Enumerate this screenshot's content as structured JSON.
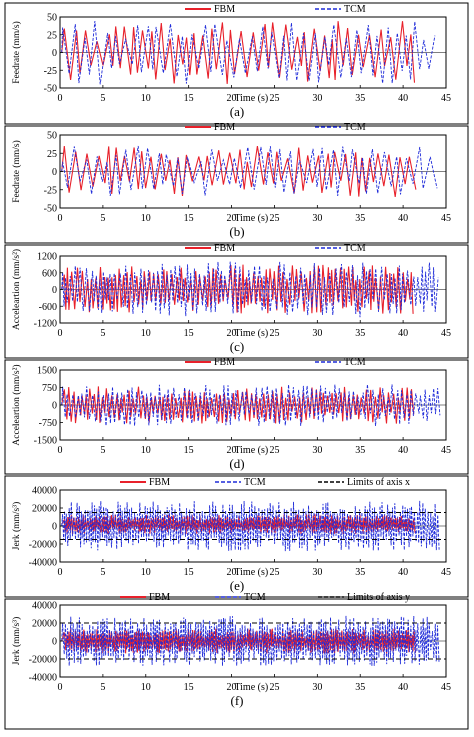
{
  "chart_data": [
    {
      "type": "line",
      "caption": "(a)",
      "ylabel": "Feedrate (mm/s)",
      "xlabel": "Time (s)",
      "xlim": [
        0,
        45
      ],
      "ylim": [
        -50,
        50
      ],
      "x_ticks": [
        "0",
        "5",
        "10",
        "15",
        "20",
        "25",
        "30",
        "35",
        "40",
        "45"
      ],
      "y_ticks": [
        "50",
        "25",
        "0",
        "-25",
        "-50"
      ],
      "grid": false,
      "legend_position": "top-center",
      "series": [
        {
          "name": "FBM",
          "color": "#e8212b",
          "dash": "solid",
          "x_end": 41.5,
          "amplitude": 45,
          "mean": 0,
          "freq": 0.9
        },
        {
          "name": "TCM",
          "color": "#1f2bd9",
          "dash": "dashed",
          "x_end": 44.3,
          "amplitude": 45,
          "mean": 0,
          "freq": 0.8
        }
      ]
    },
    {
      "type": "line",
      "caption": "(b)",
      "ylabel": "Feedrate (mm/s)",
      "xlabel": "Time (s)",
      "xlim": [
        0,
        45
      ],
      "ylim": [
        -50,
        50
      ],
      "x_ticks": [
        "0",
        "5",
        "10",
        "15",
        "20",
        "25",
        "30",
        "35",
        "40",
        "45"
      ],
      "y_ticks": [
        "50",
        "25",
        "0",
        "-25",
        "-50"
      ],
      "grid": false,
      "legend_position": "top-center",
      "series": [
        {
          "name": "FBM",
          "color": "#e8212b",
          "dash": "solid",
          "x_end": 41.5,
          "amplitude": 35,
          "mean": 0,
          "freq": 0.9
        },
        {
          "name": "TCM",
          "color": "#1f2bd9",
          "dash": "dashed",
          "x_end": 44.3,
          "amplitude": 35,
          "mean": 0,
          "freq": 0.8
        }
      ]
    },
    {
      "type": "line",
      "caption": "(c)",
      "ylabel": "Acceleartion (mm/s²)",
      "xlabel": "Time (s)",
      "xlim": [
        0,
        45
      ],
      "ylim": [
        -1200,
        1200
      ],
      "x_ticks": [
        "0",
        "5",
        "10",
        "15",
        "20",
        "25",
        "30",
        "35",
        "40",
        "45"
      ],
      "y_ticks": [
        "1200",
        "600",
        "0",
        "-600",
        "-1200"
      ],
      "grid": false,
      "legend_position": "top-center",
      "series": [
        {
          "name": "FBM",
          "color": "#e8212b",
          "dash": "solid",
          "x_end": 41.5,
          "amplitude": 900,
          "mean": 0,
          "freq": 2.0
        },
        {
          "name": "TCM",
          "color": "#1f2bd9",
          "dash": "dashed",
          "x_end": 44.3,
          "amplitude": 1000,
          "mean": 0,
          "freq": 1.8
        }
      ]
    },
    {
      "type": "line",
      "caption": "(d)",
      "ylabel": "Acceleartion (mm/s²)",
      "xlabel": "Time (s)",
      "xlim": [
        0,
        45
      ],
      "ylim": [
        -1500,
        1500
      ],
      "x_ticks": [
        "0",
        "5",
        "10",
        "15",
        "20",
        "25",
        "30",
        "35",
        "40",
        "45"
      ],
      "y_ticks": [
        "1500",
        "750",
        "0",
        "-750",
        "-1500"
      ],
      "grid": false,
      "legend_position": "top-center",
      "series": [
        {
          "name": "FBM",
          "color": "#e8212b",
          "dash": "solid",
          "x_end": 41.5,
          "amplitude": 800,
          "mean": 0,
          "freq": 2.0
        },
        {
          "name": "TCM",
          "color": "#1f2bd9",
          "dash": "dashed",
          "x_end": 44.3,
          "amplitude": 900,
          "mean": 0,
          "freq": 1.8
        }
      ]
    },
    {
      "type": "line",
      "caption": "(e)",
      "ylabel": "Jerk (mm/s³)",
      "xlabel": "Time (s)",
      "xlim": [
        0,
        45
      ],
      "ylim": [
        -40000,
        40000
      ],
      "x_ticks": [
        "0",
        "5",
        "10",
        "15",
        "20",
        "25",
        "30",
        "35",
        "40",
        "45"
      ],
      "y_ticks": [
        "40000",
        "20000",
        "0",
        "-20000",
        "-40000"
      ],
      "grid": false,
      "legend_position": "top",
      "limits": [
        15000,
        -15000
      ],
      "series": [
        {
          "name": "FBM",
          "color": "#e8212b",
          "dash": "solid",
          "x_end": 41.5,
          "amplitude": 11000,
          "mean": 2000,
          "freq": 4.0
        },
        {
          "name": "TCM",
          "color": "#1f2bd9",
          "dash": "dashed",
          "x_end": 44.3,
          "amplitude": 28000,
          "mean": 0,
          "freq": 3.5
        },
        {
          "name": "Limits of axis x",
          "color": "#000000",
          "dash": "dashed",
          "kind": "limit"
        }
      ]
    },
    {
      "type": "line",
      "caption": "(f)",
      "ylabel": "Jerk (mm/s³)",
      "xlabel": "Time (s)",
      "xlim": [
        0,
        45
      ],
      "ylim": [
        -40000,
        40000
      ],
      "x_ticks": [
        "0",
        "5",
        "10",
        "15",
        "20",
        "25",
        "30",
        "35",
        "40",
        "45"
      ],
      "y_ticks": [
        "40000",
        "20000",
        "0",
        "-20000",
        "-40000"
      ],
      "grid": false,
      "legend_position": "top",
      "limits": [
        20000,
        -20000
      ],
      "series": [
        {
          "name": "FBM",
          "color": "#e8212b",
          "dash": "solid",
          "x_end": 41.5,
          "amplitude": 14000,
          "mean": 0,
          "freq": 4.0
        },
        {
          "name": "TCM",
          "color": "#1f2bd9",
          "dash": "dashed",
          "x_end": 44.3,
          "amplitude": 28000,
          "mean": 0,
          "freq": 3.5
        },
        {
          "name": "Limits of axis y",
          "color": "#000000",
          "dash": "dashed",
          "kind": "limit"
        }
      ]
    }
  ]
}
